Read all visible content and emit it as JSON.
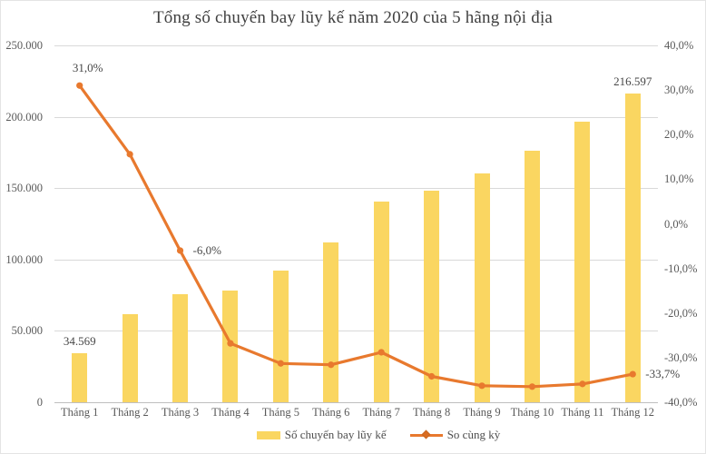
{
  "chart_data": {
    "type": "combo-bar-line",
    "title": "Tổng số chuyến bay lũy kế năm 2020 của 5 hãng nội địa",
    "categories": [
      "Tháng 1",
      "Tháng 2",
      "Tháng 3",
      "Tháng 4",
      "Tháng 5",
      "Tháng 6",
      "Tháng 7",
      "Tháng 8",
      "Tháng 9",
      "Tháng 10",
      "Tháng 11",
      "Tháng 12"
    ],
    "series": [
      {
        "name": "Số chuyến bay lũy kế",
        "type": "bar",
        "axis": "left",
        "color": "#fad661",
        "values": [
          34569,
          61500,
          76000,
          78000,
          92000,
          112000,
          140500,
          148500,
          160000,
          176500,
          196500,
          216597
        ]
      },
      {
        "name": "So cùng kỳ",
        "type": "line",
        "axis": "right",
        "color": "#e8792e",
        "values": [
          31.0,
          15.6,
          -6.0,
          -26.8,
          -31.3,
          -31.6,
          -28.8,
          -34.2,
          -36.3,
          -36.5,
          -35.9,
          -33.7
        ]
      }
    ],
    "y_left": {
      "min": 0,
      "max": 250000,
      "ticks": [
        "250.000",
        "200.000",
        "150.000",
        "100.000",
        "50.000",
        "0"
      ]
    },
    "y_right": {
      "min": -40,
      "max": 40,
      "ticks": [
        "40,0%",
        "30,0%",
        "20,0%",
        "10,0%",
        "0,0%",
        "-10,0%",
        "-20,0%",
        "-30,0%",
        "-40,0%"
      ]
    },
    "grid": true,
    "legend_position": "bottom",
    "annotations": {
      "bar_labels": [
        {
          "index": 0,
          "text": "34.569"
        },
        {
          "index": 11,
          "text": "216.597"
        }
      ],
      "line_labels": [
        {
          "index": 0,
          "text": "31,0%",
          "placement": "above"
        },
        {
          "index": 2,
          "text": "-6,0%",
          "placement": "right"
        },
        {
          "index": 11,
          "text": "-33,7%",
          "placement": "right"
        }
      ]
    }
  },
  "colors": {
    "bar": "#fad661",
    "line": "#e8792e",
    "gridline": "#d9d9d9",
    "axis_text": "#595959",
    "title_text": "#3f3f3f"
  }
}
